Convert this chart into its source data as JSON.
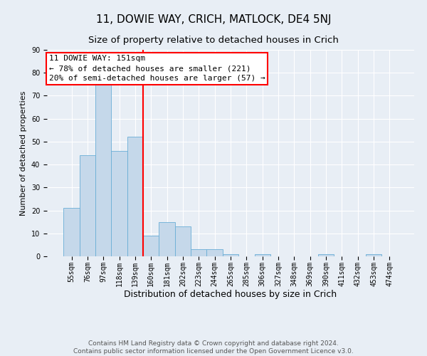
{
  "title": "11, DOWIE WAY, CRICH, MATLOCK, DE4 5NJ",
  "subtitle": "Size of property relative to detached houses in Crich",
  "xlabel": "Distribution of detached houses by size in Crich",
  "ylabel": "Number of detached properties",
  "bin_labels": [
    "55sqm",
    "76sqm",
    "97sqm",
    "118sqm",
    "139sqm",
    "160sqm",
    "181sqm",
    "202sqm",
    "223sqm",
    "244sqm",
    "265sqm",
    "285sqm",
    "306sqm",
    "327sqm",
    "348sqm",
    "369sqm",
    "390sqm",
    "411sqm",
    "432sqm",
    "453sqm",
    "474sqm"
  ],
  "bar_values": [
    21,
    44,
    75,
    46,
    52,
    9,
    15,
    13,
    3,
    3,
    1,
    0,
    1,
    0,
    0,
    0,
    1,
    0,
    0,
    1,
    0
  ],
  "bar_color": "#c5d8ea",
  "bar_edge_color": "#6aaed6",
  "background_color": "#e8eef5",
  "grid_color": "#ffffff",
  "vline_color": "red",
  "vline_x_index": 4.5,
  "annotation_text": "11 DOWIE WAY: 151sqm\n← 78% of detached houses are smaller (221)\n20% of semi-detached houses are larger (57) →",
  "annotation_box_color": "white",
  "annotation_box_edge_color": "red",
  "ylim": [
    0,
    90
  ],
  "yticks": [
    0,
    10,
    20,
    30,
    40,
    50,
    60,
    70,
    80,
    90
  ],
  "footnote": "Contains HM Land Registry data © Crown copyright and database right 2024.\nContains public sector information licensed under the Open Government Licence v3.0.",
  "title_fontsize": 11,
  "subtitle_fontsize": 9.5,
  "xlabel_fontsize": 9,
  "ylabel_fontsize": 8,
  "tick_fontsize": 7,
  "annotation_fontsize": 8,
  "footnote_fontsize": 6.5
}
